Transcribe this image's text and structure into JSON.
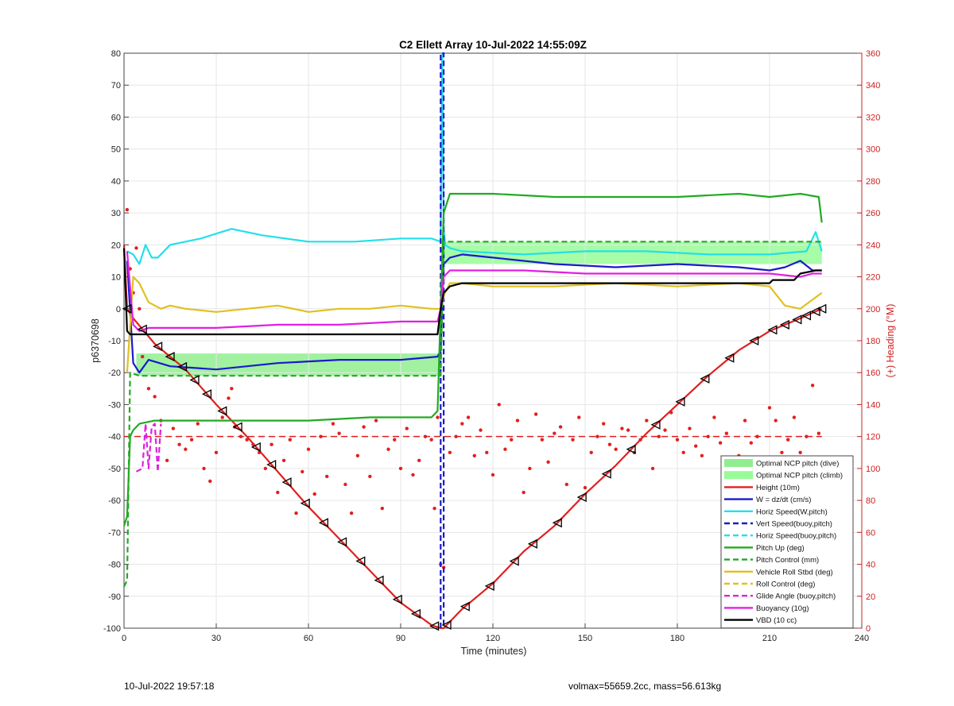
{
  "chart_data": {
    "type": "line",
    "title": "C2 Ellett Array 10-Jul-2022 14:55:09Z",
    "xlabel": "Time (minutes)",
    "ylabel_left": "p6370698",
    "ylabel_right": "(+) Heading (°M)",
    "xlim": [
      0,
      240
    ],
    "ylim_left": [
      -100,
      80
    ],
    "ylim_right": [
      0,
      360
    ],
    "xticks": [
      0,
      30,
      60,
      90,
      120,
      150,
      180,
      210,
      240
    ],
    "yticks_left": [
      -100,
      -90,
      -80,
      -70,
      -60,
      -50,
      -40,
      -30,
      -20,
      -10,
      0,
      10,
      20,
      30,
      40,
      50,
      60,
      70,
      80
    ],
    "yticks_right": [
      0,
      20,
      40,
      60,
      80,
      100,
      120,
      140,
      160,
      180,
      200,
      220,
      240,
      260,
      280,
      300,
      320,
      340,
      360
    ],
    "grid": true,
    "legend_position": "bottom-right",
    "legend": [
      {
        "label": "Optimal NCP pitch (dive)",
        "color": "#90ee90",
        "style": "patch"
      },
      {
        "label": "Optimal NCP pitch (climb)",
        "color": "#98fb98",
        "style": "patch"
      },
      {
        "label": "Height (10m)",
        "color": "#e02020",
        "style": "solid"
      },
      {
        "label": "W = dz/dt (cm/s)",
        "color": "#1a1acc",
        "style": "solid"
      },
      {
        "label": "Horiz Speed(W,pitch)",
        "color": "#22e0e8",
        "style": "solid"
      },
      {
        "label": "Vert Speed(buoy,pitch)",
        "color": "#1a1acc",
        "style": "dashed"
      },
      {
        "label": "Horiz Speed(buoy,pitch)",
        "color": "#22e0e8",
        "style": "dashed"
      },
      {
        "label": "Pitch Up (deg)",
        "color": "#22aa22",
        "style": "solid"
      },
      {
        "label": "Pitch Control (mm)",
        "color": "#22aa22",
        "style": "dashed"
      },
      {
        "label": "Vehicle Roll Stbd (deg)",
        "color": "#e0c020",
        "style": "solid"
      },
      {
        "label": "Roll Control (deg)",
        "color": "#e0c020",
        "style": "dashed"
      },
      {
        "label": "Glide Angle (buoy,pitch)",
        "color": "#e020e0",
        "style": "dashed"
      },
      {
        "label": "Buoyancy (10g)",
        "color": "#e020e0",
        "style": "solid"
      },
      {
        "label": "VBD (10 cc)",
        "color": "#000000",
        "style": "solid"
      }
    ],
    "series": [
      {
        "name": "Height (10m)",
        "color": "#e02020",
        "style": "solid",
        "axis": "left",
        "x": [
          0,
          1,
          3,
          10,
          20,
          30,
          40,
          50,
          60,
          70,
          80,
          90,
          100,
          103,
          104,
          110,
          120,
          130,
          140,
          150,
          160,
          170,
          180,
          190,
          200,
          210,
          220,
          227
        ],
        "y": [
          20,
          0,
          -3,
          -11,
          -19,
          -30,
          -40,
          -51,
          -62,
          -72,
          -82,
          -92,
          -99,
          -100,
          -100,
          -94,
          -86,
          -76,
          -68,
          -58,
          -49,
          -39,
          -30,
          -21,
          -13,
          -7,
          -3,
          0
        ]
      },
      {
        "name": "W = dz/dt (cm/s)",
        "color": "#1a1acc",
        "style": "solid",
        "axis": "left",
        "x": [
          1,
          3,
          5,
          8,
          15,
          30,
          50,
          70,
          90,
          102,
          103,
          104,
          106,
          110,
          120,
          140,
          160,
          180,
          200,
          210,
          215,
          220,
          224,
          227
        ],
        "y": [
          15,
          -17,
          -20,
          -16,
          -18,
          -19,
          -17,
          -16,
          -16,
          -15,
          -13,
          14,
          16,
          17,
          16,
          14,
          13,
          14,
          13,
          12,
          13,
          15,
          12,
          12
        ]
      },
      {
        "name": "Horiz Speed(W,pitch)",
        "color": "#22e0e8",
        "style": "solid",
        "axis": "left",
        "x": [
          1,
          3,
          5,
          7,
          9,
          11,
          15,
          25,
          35,
          45,
          60,
          75,
          90,
          100,
          103,
          103.5,
          104,
          104.5,
          106,
          110,
          130,
          150,
          170,
          190,
          210,
          222,
          225,
          227
        ],
        "y": [
          18,
          17,
          14,
          20,
          16,
          16,
          20,
          22,
          25,
          23,
          21,
          21,
          22,
          22,
          21,
          80,
          25,
          20,
          19,
          18,
          17,
          18,
          18,
          17,
          17,
          18,
          24,
          18
        ]
      },
      {
        "name": "Vert Speed(buoy,pitch)",
        "color": "#1a1acc",
        "style": "dashed",
        "axis": "left",
        "x": [
          103,
          103,
          104,
          104
        ],
        "y": [
          -100,
          80,
          80,
          -100
        ]
      },
      {
        "name": "Pitch Up (deg)",
        "color": "#22aa22",
        "style": "solid",
        "axis": "left",
        "x": [
          0,
          1,
          2,
          3,
          5,
          10,
          20,
          40,
          60,
          80,
          100,
          102,
          103,
          104,
          106,
          120,
          140,
          160,
          180,
          200,
          210,
          220,
          226,
          227
        ],
        "y": [
          -68,
          -65,
          -40,
          -38,
          -36,
          -35,
          -35,
          -35,
          -35,
          -34,
          -34,
          -32,
          0,
          30,
          36,
          36,
          35,
          35,
          35,
          36,
          35,
          36,
          35,
          27
        ]
      },
      {
        "name": "Pitch Control (mm)",
        "color": "#22aa22",
        "style": "dashed",
        "axis": "left",
        "x": [
          0,
          1,
          2,
          5,
          10,
          30,
          60,
          90,
          103,
          104,
          106,
          120,
          150,
          180,
          210,
          227
        ],
        "y": [
          -87,
          -85,
          -20,
          -21,
          -21,
          -21,
          -21,
          -21,
          -21,
          21,
          21,
          21,
          21,
          21,
          21,
          21
        ]
      },
      {
        "name": "Vehicle Roll Stbd (deg)",
        "color": "#e0c020",
        "style": "solid",
        "axis": "left",
        "x": [
          1,
          3,
          5,
          8,
          12,
          15,
          20,
          30,
          40,
          50,
          60,
          70,
          80,
          90,
          100,
          103,
          104,
          106,
          110,
          120,
          140,
          160,
          180,
          200,
          210,
          215,
          220,
          227
        ],
        "y": [
          -20,
          10,
          8,
          2,
          0,
          1,
          0,
          -1,
          0,
          1,
          -1,
          0,
          0,
          1,
          0,
          0,
          4,
          8,
          8,
          7,
          7,
          8,
          7,
          8,
          7,
          1,
          0,
          5
        ]
      },
      {
        "name": "Buoyancy (10g)",
        "color": "#e020e0",
        "style": "solid",
        "axis": "left",
        "x": [
          1,
          3,
          5,
          8,
          15,
          30,
          50,
          70,
          90,
          102,
          103,
          104,
          106,
          110,
          130,
          150,
          170,
          190,
          210,
          220,
          224,
          227
        ],
        "y": [
          18,
          -5,
          -7,
          -6,
          -6,
          -6,
          -5,
          -5,
          -4,
          -4,
          0,
          10,
          12,
          12,
          12,
          11,
          11,
          11,
          11,
          10,
          11,
          11
        ]
      },
      {
        "name": "Glide Angle (buoy,pitch)",
        "color": "#e020e0",
        "style": "dashed",
        "axis": "left",
        "x": [
          4,
          6,
          7,
          8,
          9,
          10,
          11,
          12
        ],
        "y": [
          -51,
          -50,
          -36,
          -50,
          -37,
          -36,
          -51,
          -36
        ]
      },
      {
        "name": "VBD (10 cc)",
        "color": "#000000",
        "style": "solid",
        "axis": "left",
        "x": [
          0,
          1,
          2,
          5,
          30,
          60,
          90,
          102,
          103,
          104,
          106,
          110,
          130,
          160,
          190,
          210,
          211,
          218,
          220,
          225,
          227
        ],
        "y": [
          19,
          -7,
          -8,
          -8,
          -8,
          -8,
          -8,
          -8,
          0,
          5,
          7,
          8,
          8,
          8,
          8,
          8,
          9,
          9,
          11,
          12,
          12
        ]
      }
    ],
    "bands": [
      {
        "name": "Optimal NCP pitch (dive)",
        "color": "#90ee90",
        "x": [
          4,
          103
        ],
        "y": [
          -21,
          -14
        ]
      },
      {
        "name": "Optimal NCP pitch (climb)",
        "color": "#98fb98",
        "x": [
          104,
          227
        ],
        "y": [
          14,
          21
        ]
      }
    ],
    "reference_lines": [
      {
        "color": "#e02020",
        "style": "dashed",
        "axis": "right",
        "y": 120,
        "x": [
          0,
          227
        ]
      }
    ],
    "heading_dots": {
      "color": "#e02020",
      "axis": "right",
      "x": [
        1,
        2,
        3,
        4,
        5,
        6,
        8,
        10,
        12,
        14,
        16,
        18,
        20,
        22,
        24,
        26,
        28,
        30,
        32,
        34,
        35,
        36,
        38,
        40,
        42,
        44,
        46,
        48,
        50,
        52,
        54,
        56,
        58,
        60,
        62,
        64,
        66,
        68,
        70,
        72,
        74,
        76,
        78,
        80,
        82,
        84,
        86,
        88,
        90,
        92,
        94,
        96,
        98,
        100,
        101,
        102,
        103,
        104,
        106,
        108,
        110,
        112,
        114,
        116,
        118,
        120,
        122,
        124,
        126,
        128,
        130,
        132,
        134,
        136,
        138,
        140,
        142,
        144,
        146,
        148,
        150,
        152,
        154,
        156,
        158,
        160,
        162,
        164,
        166,
        168,
        170,
        172,
        174,
        176,
        178,
        180,
        182,
        184,
        186,
        188,
        190,
        192,
        194,
        196,
        198,
        200,
        202,
        204,
        206,
        208,
        210,
        212,
        214,
        216,
        218,
        220,
        222,
        224,
        226
      ],
      "y": [
        262,
        225,
        210,
        238,
        200,
        170,
        150,
        145,
        130,
        105,
        125,
        115,
        112,
        118,
        128,
        100,
        92,
        110,
        132,
        144,
        150,
        126,
        120,
        118,
        115,
        110,
        100,
        115,
        85,
        105,
        118,
        72,
        98,
        112,
        84,
        120,
        95,
        128,
        122,
        90,
        72,
        108,
        126,
        95,
        130,
        75,
        112,
        118,
        100,
        125,
        96,
        105,
        120,
        118,
        75,
        132,
        40,
        38,
        110,
        120,
        128,
        132,
        108,
        124,
        110,
        96,
        140,
        112,
        118,
        130,
        85,
        100,
        134,
        118,
        104,
        122,
        126,
        90,
        118,
        132,
        88,
        110,
        120,
        128,
        115,
        112,
        125,
        124,
        110,
        118,
        130,
        100,
        120,
        124,
        135,
        118,
        110,
        125,
        114,
        108,
        120,
        132,
        116,
        122,
        100,
        108,
        130,
        116,
        120,
        100,
        138,
        130,
        110,
        118,
        132,
        110,
        120,
        152,
        122
      ]
    },
    "height_markers_x": [
      1,
      6,
      11,
      15,
      19,
      23,
      27,
      32,
      37,
      43,
      48,
      53,
      59,
      65,
      71,
      77,
      83,
      89,
      95,
      101,
      105,
      111,
      119,
      127,
      133,
      141,
      149,
      157,
      165,
      173,
      181,
      189,
      197,
      205,
      211,
      215,
      219,
      222,
      225,
      227
    ]
  },
  "footer": {
    "left": "10-Jul-2022 19:57:18",
    "right": "volmax=55659.2cc, mass=56.613kg"
  }
}
